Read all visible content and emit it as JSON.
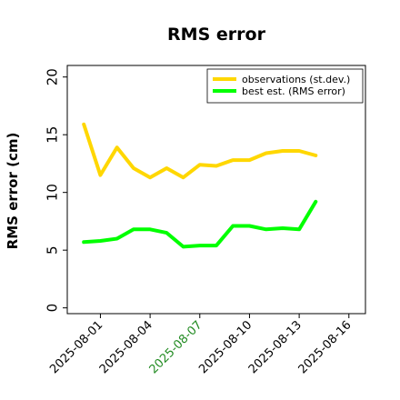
{
  "chart_data": {
    "type": "line",
    "title": "RMS error",
    "xlabel": "",
    "ylabel": "RMS error (cm)",
    "ylim": [
      -0.5,
      21
    ],
    "yticks": [
      0,
      5,
      10,
      15,
      20
    ],
    "xlim": [
      "2025-07-30",
      "2025-08-17"
    ],
    "xticks": [
      "2025-08-01",
      "2025-08-04",
      "2025-08-07",
      "2025-08-10",
      "2025-08-13",
      "2025-08-16"
    ],
    "highlight_tick": "2025-08-07",
    "highlight_color": "#228B22",
    "x": [
      "2025-07-31",
      "2025-08-01",
      "2025-08-02",
      "2025-08-03",
      "2025-08-04",
      "2025-08-05",
      "2025-08-06",
      "2025-08-07",
      "2025-08-08",
      "2025-08-09",
      "2025-08-10",
      "2025-08-11",
      "2025-08-12",
      "2025-08-13",
      "2025-08-14"
    ],
    "series": [
      {
        "name": "observations (st.dev.)",
        "color": "#FFD700",
        "values": [
          15.9,
          11.5,
          13.9,
          12.1,
          11.3,
          12.1,
          11.3,
          12.4,
          12.3,
          12.8,
          12.8,
          13.4,
          13.6,
          13.6,
          13.2
        ]
      },
      {
        "name": "best est. (RMS error)",
        "color": "#00FF00",
        "values": [
          5.7,
          5.8,
          6.0,
          6.8,
          6.8,
          6.5,
          5.3,
          5.4,
          5.4,
          7.1,
          7.1,
          6.8,
          6.9,
          6.8,
          9.2
        ]
      }
    ],
    "legend_position": "top-right",
    "grid": false
  }
}
